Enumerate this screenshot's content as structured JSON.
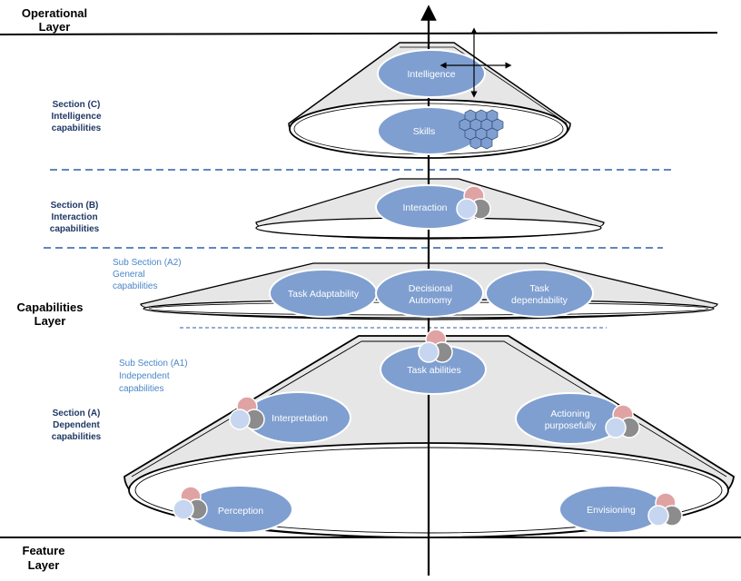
{
  "layers": {
    "operational": [
      "Operational",
      "Layer"
    ],
    "capabilities": [
      "Capabilities",
      "Layer"
    ],
    "feature": [
      "Feature",
      "Layer"
    ]
  },
  "sections": {
    "c": [
      "Section (C)",
      "Intelligence",
      "capabilities"
    ],
    "b": [
      "Section (B)",
      "Interaction",
      "capabilities"
    ],
    "a": [
      "Section (A)",
      "Dependent",
      "capabilities"
    ],
    "a2": [
      "Sub Section (A2)",
      "General",
      "capabilities"
    ],
    "a1": [
      "Sub Section (A1)",
      "Independent",
      "capabilities"
    ]
  },
  "nodes": {
    "intelligence": "Intelligence",
    "skills": "Skills",
    "interaction": "Interaction",
    "task_adaptability": "Task Adaptability",
    "decisional_autonomy": [
      "Decisional",
      "Autonomy"
    ],
    "task_dependability": [
      "Task",
      "dependability"
    ],
    "task_abilities": "Task abilities",
    "interpretation": "Interpretation",
    "actioning_purposefully": [
      "Actioning",
      "purposefully"
    ],
    "perception": "Perception",
    "envisioning": "Envisioning"
  },
  "colors": {
    "node_fill": "#7f9fd0",
    "cone_fill": "#e6e6e6",
    "section_text": "#1f3864",
    "subsection_text": "#4a86c8",
    "dashed_line": "#2e5ea8",
    "circle_pink": "#e0a3a3",
    "circle_grey": "#8c8c8c",
    "circle_light": "#c6d6f0"
  }
}
